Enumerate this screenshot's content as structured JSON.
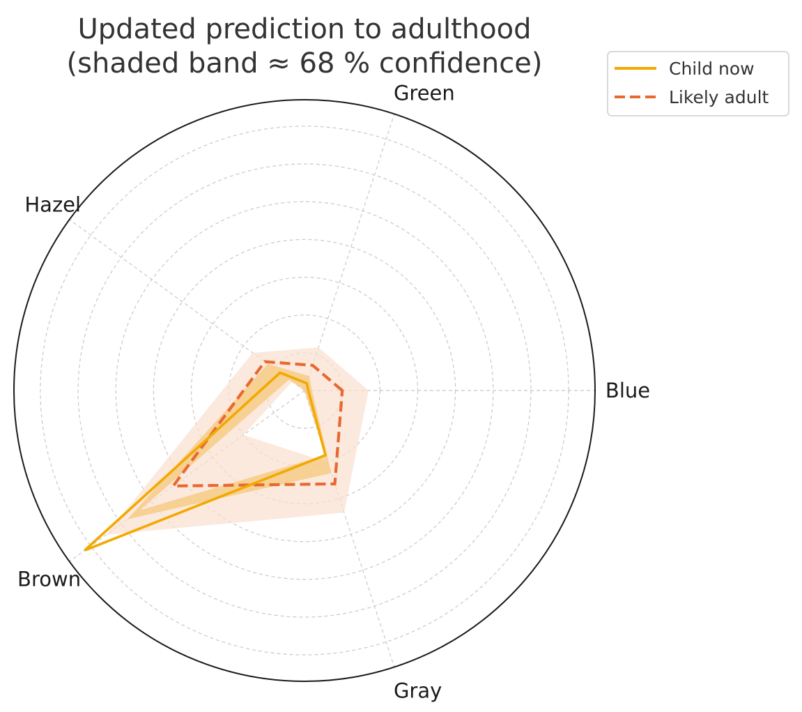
{
  "chart_data": {
    "type": "radar",
    "title_lines": [
      "Updated prediction to adulthood",
      "(shaded band ≈ 68 % confidence)"
    ],
    "categories": [
      "Blue",
      "Green",
      "Hazel",
      "Brown",
      "Gray"
    ],
    "rlim": [
      0,
      0.77
    ],
    "grid_rings": [
      0.1,
      0.2,
      0.3,
      0.4,
      0.5,
      0.6,
      0.7
    ],
    "grid": true,
    "legend_position": "top-right",
    "series": [
      {
        "name": "Child now",
        "color": "#f2a900",
        "line_style": "solid",
        "values": [
          0.01,
          0.02,
          0.08,
          0.72,
          0.18
        ],
        "band_lower": [
          0.0,
          0.0,
          0.05,
          0.54,
          0.18
        ],
        "band_upper": [
          0.02,
          0.04,
          0.12,
          0.58,
          0.23
        ],
        "band_color": "#f5c77a"
      },
      {
        "name": "Likely adult",
        "color": "#e8692f",
        "line_style": "dashed",
        "values": [
          0.1,
          0.07,
          0.13,
          0.43,
          0.26
        ],
        "band_lower": [
          0.0,
          0.0,
          0.04,
          0.2,
          0.2
        ],
        "band_upper": [
          0.17,
          0.12,
          0.17,
          0.65,
          0.34
        ],
        "band_color": "#fbe0d0"
      }
    ]
  }
}
